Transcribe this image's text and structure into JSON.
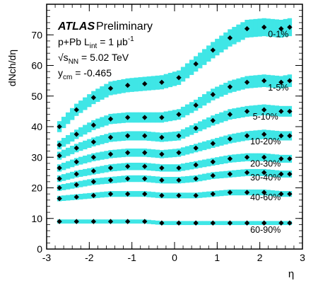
{
  "chart_data": {
    "type": "scatter",
    "title": "",
    "xlabel": "η",
    "ylabel": "dNch/dη",
    "xlim": [
      -3,
      3
    ],
    "ylim": [
      0,
      80
    ],
    "x_ticks": [
      -3,
      -2,
      -1,
      0,
      1,
      2,
      3
    ],
    "y_ticks": [
      0,
      10,
      20,
      30,
      40,
      50,
      60,
      70
    ],
    "grid": false,
    "band_color": "#3fe6e6",
    "marker_color": "#000000",
    "annotation": {
      "experiment": "ATLAS",
      "status": "Preliminary",
      "line1": "p+Pb L",
      "line1_sub": "int",
      "line1_rest": " = 1 μb",
      "line1_sup": "-1",
      "line2_pre": "√s",
      "line2_sub": "NN",
      "line2_rest": " = 5.02 TeV",
      "line3_pre": "y",
      "line3_sub": "cm",
      "line3_rest": " = -0.465"
    },
    "x": [
      -2.7,
      -2.3,
      -1.9,
      -1.5,
      -1.1,
      -0.7,
      -0.3,
      0.1,
      0.5,
      0.9,
      1.3,
      1.7,
      2.1,
      2.5,
      2.7
    ],
    "series": [
      {
        "name": "0-1%",
        "values": [
          40.0,
          45.5,
          49.5,
          52.5,
          53.5,
          54.0,
          54.5,
          56.0,
          60.5,
          65.0,
          69.0,
          72.0,
          72.5,
          72.0,
          72.5
        ]
      },
      {
        "name": "1-5%",
        "values": [
          34.0,
          37.5,
          40.5,
          42.5,
          43.0,
          43.0,
          43.0,
          44.0,
          47.0,
          50.5,
          53.0,
          54.5,
          55.0,
          54.5,
          55.0
        ]
      },
      {
        "name": "5-10%",
        "values": [
          30.5,
          33.0,
          35.0,
          36.5,
          37.0,
          37.0,
          36.5,
          37.0,
          39.5,
          42.0,
          44.0,
          45.0,
          45.5,
          45.0,
          45.0
        ]
      },
      {
        "name": "10-20%",
        "values": [
          26.5,
          28.5,
          30.0,
          31.0,
          31.5,
          31.5,
          31.0,
          31.5,
          33.0,
          34.5,
          36.0,
          37.0,
          37.5,
          37.0,
          37.0
        ]
      },
      {
        "name": "20-30%",
        "values": [
          23.0,
          24.5,
          25.5,
          26.5,
          27.0,
          27.0,
          26.5,
          26.5,
          27.5,
          28.5,
          29.5,
          30.0,
          30.0,
          29.5,
          29.5
        ]
      },
      {
        "name": "30-40%",
        "values": [
          20.0,
          21.0,
          22.0,
          22.5,
          23.0,
          23.0,
          22.5,
          22.5,
          23.0,
          24.0,
          24.5,
          25.0,
          25.0,
          24.5,
          24.5
        ]
      },
      {
        "name": "40-60%",
        "values": [
          16.5,
          17.0,
          17.5,
          18.0,
          18.0,
          18.0,
          17.5,
          17.5,
          17.5,
          18.0,
          18.5,
          18.5,
          18.5,
          18.0,
          18.0
        ]
      },
      {
        "name": "60-90%",
        "values": [
          9.0,
          9.0,
          9.0,
          9.0,
          9.0,
          9.0,
          8.5,
          8.5,
          8.5,
          8.5,
          8.5,
          8.5,
          8.5,
          8.5,
          8.5
        ]
      }
    ]
  }
}
